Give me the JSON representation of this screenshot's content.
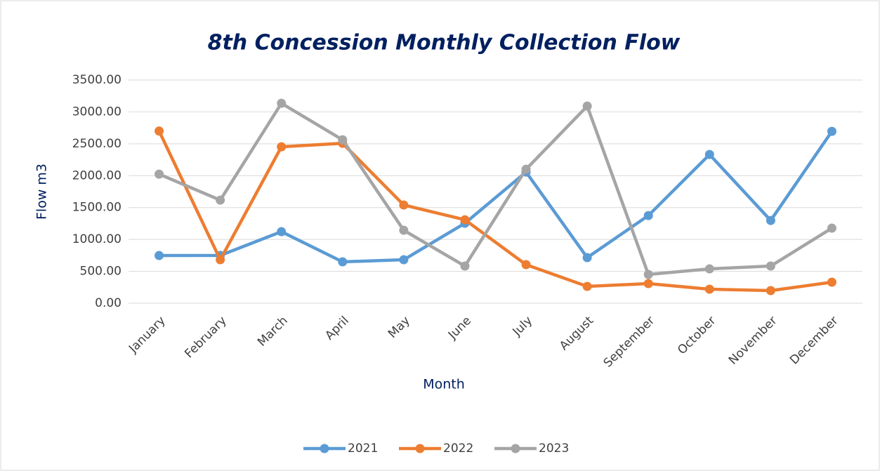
{
  "chart_data": {
    "type": "line",
    "title": "8th Concession Monthly Collection Flow",
    "x_label": "Month",
    "y_label": "Flow m3",
    "categories": [
      "January",
      "February",
      "March",
      "April",
      "May",
      "June",
      "July",
      "August",
      "September",
      "October",
      "November",
      "December"
    ],
    "series": [
      {
        "name": "2021",
        "color": "#5b9bd5",
        "values": [
          748,
          750,
          1122,
          649,
          682,
          1254,
          2057,
          715,
          1375,
          2332,
          1298,
          2695
        ]
      },
      {
        "name": "2022",
        "color": "#ed7d31",
        "values": [
          2700,
          682,
          2453,
          2508,
          1540,
          1309,
          605,
          264,
          308,
          220,
          198,
          330
        ]
      },
      {
        "name": "2023",
        "color": "#a5a5a5",
        "values": [
          2024,
          1617,
          3135,
          2563,
          1144,
          583,
          2101,
          3091,
          451,
          539,
          583,
          1177
        ]
      }
    ],
    "ylim": [
      0,
      3500
    ],
    "yticks": [
      {
        "value": 0,
        "label": "0.00"
      },
      {
        "value": 500,
        "label": "500.00"
      },
      {
        "value": 1000,
        "label": "1000.00"
      },
      {
        "value": 1500,
        "label": "1500.00"
      },
      {
        "value": 2000,
        "label": "2000.00"
      },
      {
        "value": 2500,
        "label": "2500.00"
      },
      {
        "value": 3000,
        "label": "3000.00"
      },
      {
        "value": 3500,
        "label": "3500.00"
      }
    ],
    "grid": true,
    "markers": true,
    "legend": "bottom"
  }
}
